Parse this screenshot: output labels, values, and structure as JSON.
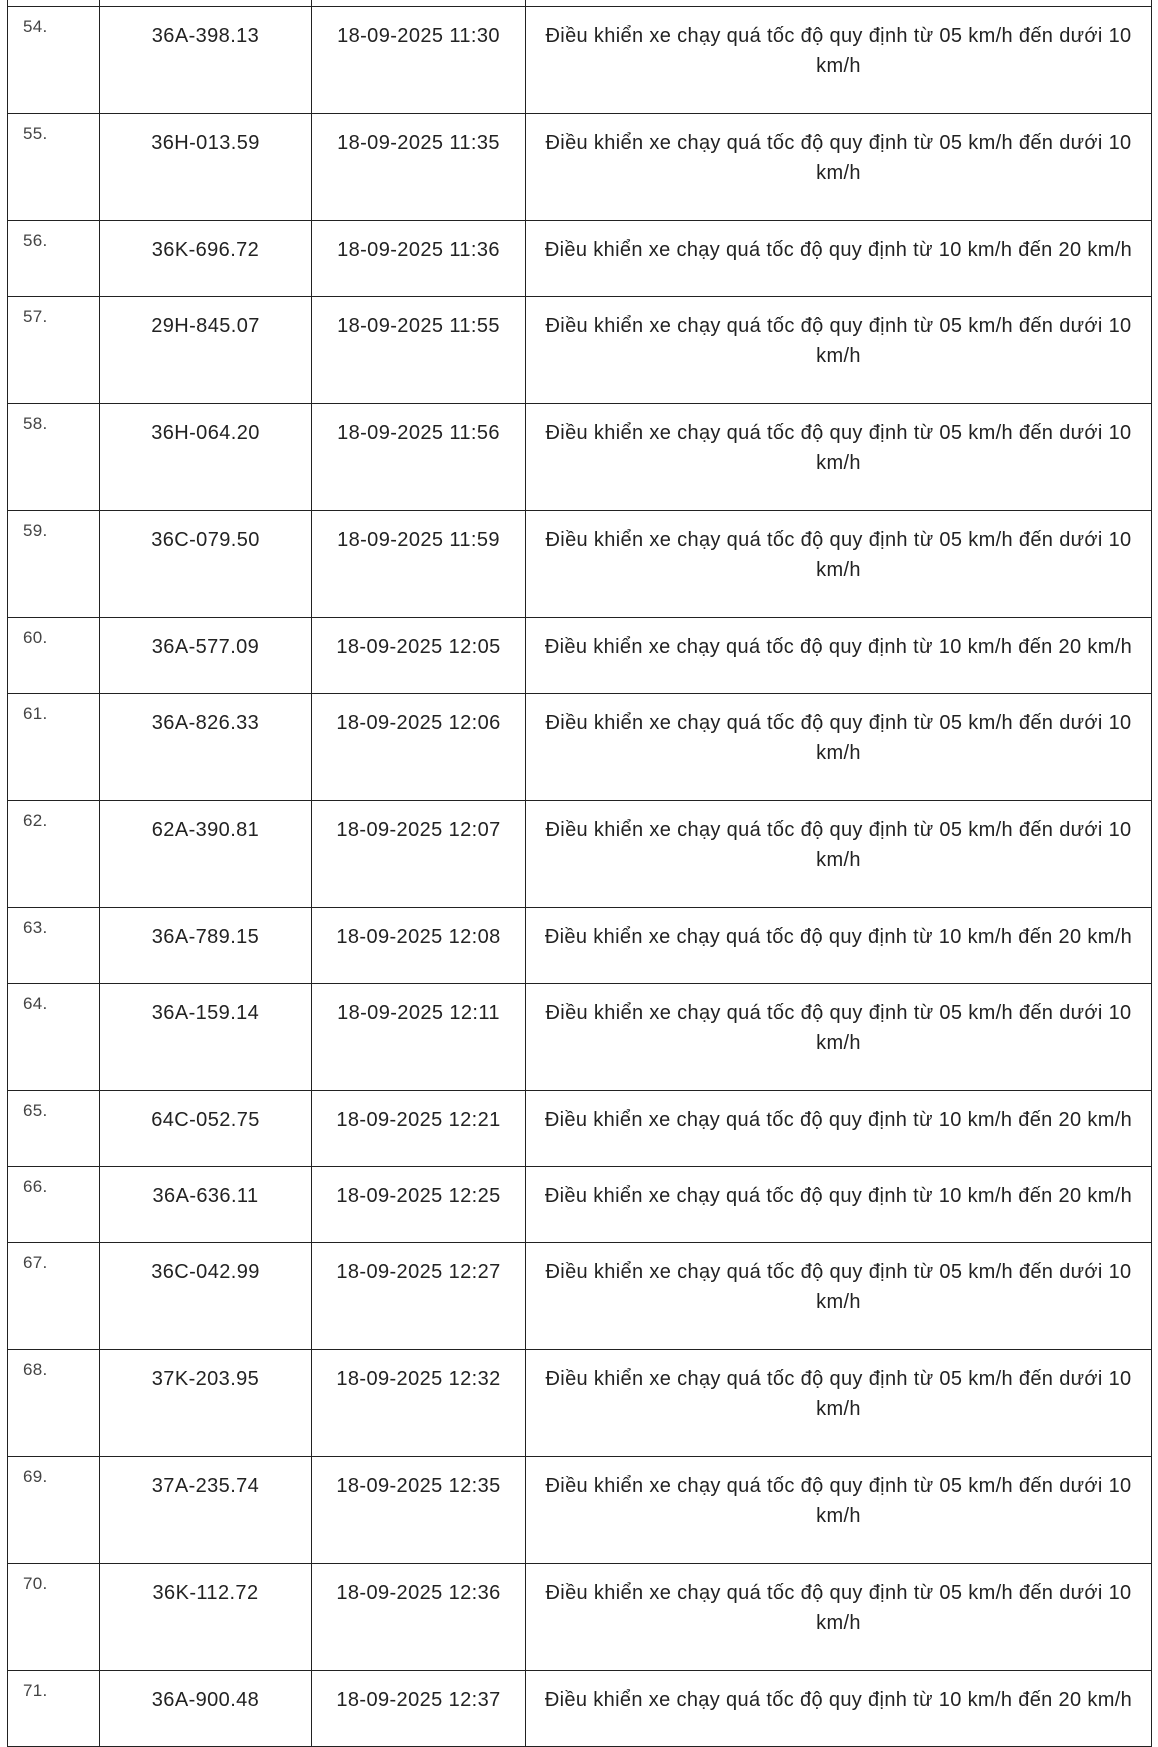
{
  "table": {
    "rows": [
      {
        "no": "54.",
        "plate": "36A-398.13",
        "time": "18-09-2025 11:30",
        "violation": "Điều khiển xe chạy quá tốc độ quy định từ 05 km/h đến dưới 10 km/h"
      },
      {
        "no": "55.",
        "plate": "36H-013.59",
        "time": "18-09-2025 11:35",
        "violation": "Điều khiển xe chạy quá tốc độ quy định từ 05 km/h đến dưới 10 km/h"
      },
      {
        "no": "56.",
        "plate": "36K-696.72",
        "time": "18-09-2025 11:36",
        "violation": "Điều khiển xe chạy quá tốc độ quy định từ 10 km/h đến 20 km/h"
      },
      {
        "no": "57.",
        "plate": "29H-845.07",
        "time": "18-09-2025 11:55",
        "violation": "Điều khiển xe chạy quá tốc độ quy định từ 05 km/h đến dưới 10 km/h"
      },
      {
        "no": "58.",
        "plate": "36H-064.20",
        "time": "18-09-2025 11:56",
        "violation": "Điều khiển xe chạy quá tốc độ quy định từ 05 km/h đến dưới 10 km/h"
      },
      {
        "no": "59.",
        "plate": "36C-079.50",
        "time": "18-09-2025 11:59",
        "violation": "Điều khiển xe chạy quá tốc độ quy định từ 05 km/h đến dưới 10 km/h"
      },
      {
        "no": "60.",
        "plate": "36A-577.09",
        "time": "18-09-2025 12:05",
        "violation": "Điều khiển xe chạy quá tốc độ quy định từ 10 km/h đến 20 km/h"
      },
      {
        "no": "61.",
        "plate": "36A-826.33",
        "time": "18-09-2025 12:06",
        "violation": "Điều khiển xe chạy quá tốc độ quy định từ 05 km/h đến dưới 10 km/h"
      },
      {
        "no": "62.",
        "plate": "62A-390.81",
        "time": "18-09-2025 12:07",
        "violation": "Điều khiển xe chạy quá tốc độ quy định từ 05 km/h đến dưới 10 km/h"
      },
      {
        "no": "63.",
        "plate": "36A-789.15",
        "time": "18-09-2025 12:08",
        "violation": "Điều khiển xe chạy quá tốc độ quy định từ 10 km/h đến 20 km/h"
      },
      {
        "no": "64.",
        "plate": "36A-159.14",
        "time": "18-09-2025 12:11",
        "violation": "Điều khiển xe chạy quá tốc độ quy định từ 05 km/h đến dưới 10 km/h"
      },
      {
        "no": "65.",
        "plate": "64C-052.75",
        "time": "18-09-2025 12:21",
        "violation": "Điều khiển xe chạy quá tốc độ quy định từ 10 km/h đến 20 km/h"
      },
      {
        "no": "66.",
        "plate": "36A-636.11",
        "time": "18-09-2025 12:25",
        "violation": "Điều khiển xe chạy quá tốc độ quy định từ 10 km/h đến 20 km/h"
      },
      {
        "no": "67.",
        "plate": "36C-042.99",
        "time": "18-09-2025 12:27",
        "violation": "Điều khiển xe chạy quá tốc độ quy định từ 05 km/h đến dưới 10 km/h"
      },
      {
        "no": "68.",
        "plate": "37K-203.95",
        "time": "18-09-2025 12:32",
        "violation": "Điều khiển xe chạy quá tốc độ quy định từ 05 km/h đến dưới 10 km/h"
      },
      {
        "no": "69.",
        "plate": "37A-235.74",
        "time": "18-09-2025 12:35",
        "violation": "Điều khiển xe chạy quá tốc độ quy định từ 05 km/h đến dưới 10 km/h"
      },
      {
        "no": "70.",
        "plate": "36K-112.72",
        "time": "18-09-2025 12:36",
        "violation": "Điều khiển xe chạy quá tốc độ quy định từ 05 km/h đến dưới 10 km/h"
      },
      {
        "no": "71.",
        "plate": "36A-900.48",
        "time": "18-09-2025 12:37",
        "violation": "Điều khiển xe chạy quá tốc độ quy định từ 10 km/h đến 20 km/h"
      }
    ]
  }
}
